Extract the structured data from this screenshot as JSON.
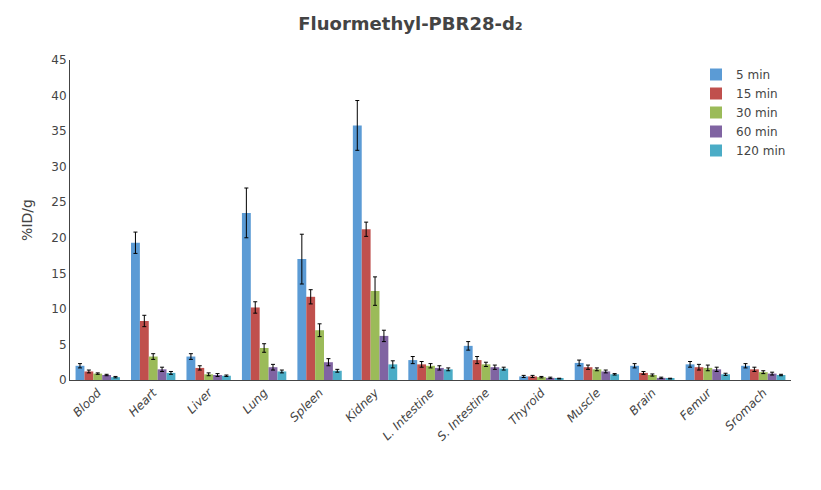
{
  "chart_data": {
    "type": "bar",
    "title": "Fluormethyl-PBR28-d₂",
    "ylabel": "%ID/g",
    "categories": [
      "Blood",
      "Heart",
      "Liver",
      "Lung",
      "Spleen",
      "Kidney",
      "L. Intestine",
      "S. Intestine",
      "Thyroid",
      "Muscle",
      "Brain",
      "Femur",
      "Sromach"
    ],
    "series": [
      {
        "name": "5 min",
        "color": "#5B9BD5",
        "values": [
          2.0,
          19.3,
          3.3,
          23.5,
          17.0,
          35.8,
          2.8,
          4.8,
          0.5,
          2.4,
          2.0,
          2.2,
          2.0
        ],
        "errors": [
          0.3,
          1.5,
          0.4,
          3.5,
          3.5,
          3.5,
          0.5,
          0.6,
          0.15,
          0.4,
          0.3,
          0.4,
          0.3
        ]
      },
      {
        "name": "15 min",
        "color": "#C0504D",
        "values": [
          1.2,
          8.3,
          1.7,
          10.2,
          11.7,
          21.2,
          2.2,
          2.8,
          0.5,
          1.8,
          1.0,
          1.8,
          1.5
        ],
        "errors": [
          0.2,
          0.8,
          0.3,
          0.8,
          1.0,
          1.0,
          0.4,
          0.5,
          0.15,
          0.3,
          0.2,
          0.4,
          0.3
        ]
      },
      {
        "name": "30 min",
        "color": "#9BBB59",
        "values": [
          0.9,
          3.3,
          0.8,
          4.5,
          7.0,
          12.5,
          2.0,
          2.2,
          0.4,
          1.5,
          0.7,
          1.7,
          1.1
        ],
        "errors": [
          0.1,
          0.4,
          0.2,
          0.6,
          0.9,
          2.0,
          0.3,
          0.3,
          0.1,
          0.2,
          0.15,
          0.4,
          0.2
        ]
      },
      {
        "name": "60 min",
        "color": "#8064A2",
        "values": [
          0.7,
          1.5,
          0.7,
          1.8,
          2.5,
          6.2,
          1.7,
          1.8,
          0.3,
          1.2,
          0.3,
          1.5,
          0.9
        ],
        "errors": [
          0.1,
          0.3,
          0.2,
          0.4,
          0.5,
          0.8,
          0.3,
          0.3,
          0.1,
          0.2,
          0.1,
          0.3,
          0.2
        ]
      },
      {
        "name": "120 min",
        "color": "#4BACC6",
        "values": [
          0.4,
          1.0,
          0.6,
          1.2,
          1.3,
          2.2,
          1.5,
          1.6,
          0.2,
          0.8,
          0.2,
          0.8,
          0.7
        ],
        "errors": [
          0.1,
          0.2,
          0.1,
          0.2,
          0.2,
          0.5,
          0.2,
          0.2,
          0.05,
          0.1,
          0.05,
          0.15,
          0.1
        ]
      }
    ],
    "ylim": [
      0,
      45
    ],
    "yticks": [
      0,
      5,
      10,
      15,
      20,
      25,
      30,
      35,
      40,
      45
    ],
    "grid": false,
    "legend": "upper right"
  }
}
